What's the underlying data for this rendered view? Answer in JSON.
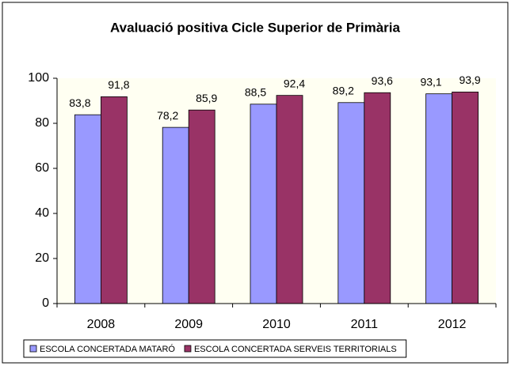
{
  "chart_data": {
    "type": "bar",
    "title": "Avaluació positiva Cicle Superior de Primària",
    "categories": [
      "2008",
      "2009",
      "2010",
      "2011",
      "2012"
    ],
    "series": [
      {
        "name": "ESCOLA CONCERTADA MATARÓ",
        "color": "#9999ff",
        "values": [
          83.8,
          78.2,
          88.5,
          89.2,
          93.1
        ],
        "value_labels": [
          "83,8",
          "78,2",
          "88,5",
          "89,2",
          "93,1"
        ]
      },
      {
        "name": "ESCOLA CONCERTADA SERVEIS TERRITORIALS",
        "color": "#993366",
        "values": [
          91.8,
          85.9,
          92.4,
          93.6,
          93.9
        ],
        "value_labels": [
          "91,8",
          "85,9",
          "92,4",
          "93,6",
          "93,9"
        ]
      }
    ],
    "ylim": [
      0,
      100
    ],
    "yticks": [
      0,
      20,
      40,
      60,
      80,
      100
    ],
    "grid": false,
    "legend": "bottom"
  }
}
